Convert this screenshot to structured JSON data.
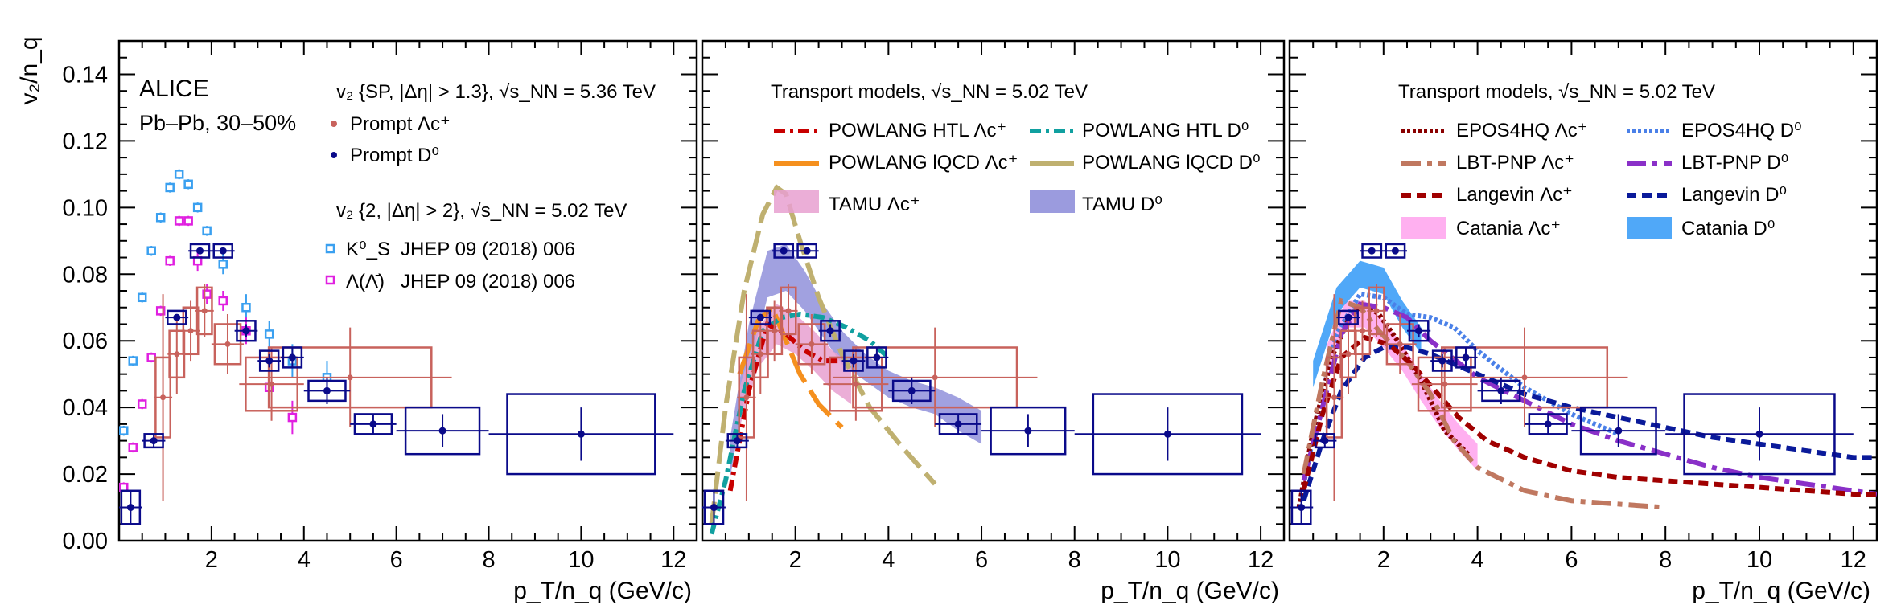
{
  "figure": {
    "ylabel": "v₂/n_q",
    "xlabel": "p_T/n_q (GeV/c)",
    "xticks": [
      2,
      4,
      6,
      8,
      10,
      12
    ],
    "yticks": [
      "0.00",
      "0.02",
      "0.04",
      "0.06",
      "0.08",
      "0.10",
      "0.12",
      "0.14"
    ],
    "colors": {
      "prompt_lc": "#c8625c",
      "prompt_d0": "#0a0a8a",
      "ks0": "#3aa0f0",
      "lambda": "#e020e0",
      "powlang_htl_lc": "#c80000",
      "powlang_htl_d0": "#10a0a0",
      "powlang_lqcd_lc": "#f5901e",
      "powlang_lqcd_d0": "#bfb070",
      "tamu_lc": "#e8a0d0",
      "tamu_d0": "#8a8ad8",
      "epos_lc": "#8a0000",
      "epos_d0": "#4a80e8",
      "lbt_lc": "#c07860",
      "lbt_d0": "#8a30c8",
      "langevin_lc": "#a00000",
      "langevin_d0": "#0a1a9a",
      "catania_lc": "#ffb0f0",
      "catania_d0": "#50a8f8"
    }
  },
  "panel1": {
    "experiment": "ALICE",
    "system": "Pb–Pb, 30–50%",
    "legend_a_header": "v₂ {SP, |Δη| > 1.3}, √s_NN = 5.36 TeV",
    "legend_a": [
      "Prompt Λc⁺",
      "Prompt D⁰"
    ],
    "legend_b_header": "v₂ {2, |Δη| > 2}, √s_NN = 5.02 TeV",
    "legend_b": [
      {
        "sym": "K⁰_S",
        "ref": "JHEP 09 (2018) 006"
      },
      {
        "sym": "Λ(Λ̄)",
        "ref": "JHEP 09 (2018) 006"
      }
    ]
  },
  "panel2": {
    "header": "Transport models, √s_NN = 5.02 TeV",
    "legend": [
      "POWLANG HTL Λc⁺",
      "POWLANG HTL D⁰",
      "POWLANG lQCD Λc⁺",
      "POWLANG lQCD D⁰",
      "TAMU Λc⁺",
      "TAMU D⁰"
    ]
  },
  "panel3": {
    "header": "Transport models, √s_NN = 5.02 TeV",
    "legend": [
      "EPOS4HQ Λc⁺",
      "EPOS4HQ D⁰",
      "LBT-PNP Λc⁺",
      "LBT-PNP D⁰",
      "Langevin Λc⁺",
      "Langevin D⁰",
      "Catania Λc⁺",
      "Catania D⁰"
    ]
  },
  "chart_data": {
    "type": "scatter",
    "xlabel": "p_T/n_q (GeV/c)",
    "ylabel": "v₂/n_q",
    "xlim": [
      0,
      12.5
    ],
    "ylim": [
      0,
      0.15
    ],
    "series": [
      {
        "name": "Prompt Λc⁺",
        "x": [
          0.95,
          1.25,
          1.55,
          1.85,
          2.35,
          3.3,
          5.0
        ],
        "y": [
          0.043,
          0.056,
          0.063,
          0.069,
          0.059,
          0.047,
          0.049
        ],
        "yerr": [
          0.031,
          0.012,
          0.009,
          0.008,
          0.009,
          0.011,
          0.015
        ],
        "xw": [
          0.2,
          0.2,
          0.2,
          0.2,
          0.35,
          0.7,
          2.2
        ],
        "syst": [
          0.012,
          0.007,
          0.007,
          0.007,
          0.006,
          0.008,
          0.009
        ]
      },
      {
        "name": "Prompt D⁰",
        "x": [
          0.25,
          0.75,
          1.25,
          1.75,
          2.25,
          2.75,
          3.25,
          3.75,
          4.5,
          5.5,
          7.0,
          10.0
        ],
        "y": [
          0.01,
          0.03,
          0.067,
          0.087,
          0.087,
          0.063,
          0.054,
          0.055,
          0.045,
          0.035,
          0.033,
          0.032
        ],
        "yerr": [
          0.005,
          0.002,
          0.001,
          0.001,
          0.001,
          0.002,
          0.002,
          0.003,
          0.004,
          0.003,
          0.005,
          0.008
        ],
        "xw": [
          0.25,
          0.25,
          0.25,
          0.25,
          0.25,
          0.25,
          0.25,
          0.25,
          0.5,
          0.5,
          1.0,
          2.0
        ],
        "syst": [
          0.005,
          0.002,
          0.002,
          0.002,
          0.002,
          0.003,
          0.003,
          0.003,
          0.003,
          0.003,
          0.007,
          0.012
        ]
      },
      {
        "name": "K⁰_S",
        "x": [
          0.1,
          0.3,
          0.5,
          0.7,
          0.9,
          1.1,
          1.3,
          1.5,
          1.7,
          1.9,
          2.25,
          2.75,
          3.25,
          3.75,
          4.5
        ],
        "y": [
          0.033,
          0.054,
          0.073,
          0.087,
          0.097,
          0.106,
          0.11,
          0.107,
          0.1,
          0.093,
          0.083,
          0.07,
          0.062,
          0.054,
          0.049
        ],
        "yerr": [
          0.0015,
          0.0015,
          0.0015,
          0.0015,
          0.0015,
          0.0015,
          0.0015,
          0.0015,
          0.0015,
          0.0015,
          0.003,
          0.004,
          0.004,
          0.005,
          0.005
        ]
      },
      {
        "name": "Λ(Λ̄)",
        "x": [
          0.1,
          0.3,
          0.5,
          0.7,
          0.9,
          1.1,
          1.3,
          1.5,
          1.7,
          1.9,
          2.25,
          2.75,
          3.25,
          3.75
        ],
        "y": [
          0.016,
          0.028,
          0.041,
          0.055,
          0.069,
          0.084,
          0.096,
          0.096,
          0.084,
          0.074,
          0.072,
          0.063,
          0.046,
          0.037
        ],
        "yerr": [
          0.0015,
          0.0015,
          0.0015,
          0.0015,
          0.0015,
          0.0015,
          0.0015,
          0.0015,
          0.003,
          0.003,
          0.003,
          0.004,
          0.004,
          0.005
        ]
      }
    ],
    "models": [
      {
        "name": "POWLANG HTL Λc⁺",
        "x": [
          0.6,
          1.0,
          1.4,
          1.8,
          2.2,
          2.6,
          3.0
        ],
        "y": [
          0.015,
          0.045,
          0.065,
          0.062,
          0.057,
          0.054,
          0.054
        ]
      },
      {
        "name": "POWLANG HTL D⁰",
        "x": [
          0.2,
          0.5,
          0.9,
          1.3,
          1.7,
          2.1,
          2.6,
          3.1,
          3.6,
          4.0
        ],
        "y": [
          0.002,
          0.018,
          0.045,
          0.063,
          0.067,
          0.068,
          0.067,
          0.064,
          0.06,
          0.055
        ]
      },
      {
        "name": "POWLANG lQCD Λc⁺",
        "x": [
          0.8,
          1.2,
          1.5,
          1.8,
          2.1,
          2.5,
          3.0
        ],
        "y": [
          0.05,
          0.066,
          0.07,
          0.06,
          0.05,
          0.041,
          0.034
        ]
      },
      {
        "name": "POWLANG lQCD D⁰",
        "x": [
          0.2,
          0.5,
          0.9,
          1.3,
          1.6,
          1.8,
          2.1,
          2.5,
          3.0,
          3.6,
          4.3,
          5.0
        ],
        "y": [
          0.005,
          0.04,
          0.075,
          0.098,
          0.106,
          0.104,
          0.09,
          0.073,
          0.056,
          0.04,
          0.028,
          0.017
        ]
      },
      {
        "name": "TAMU Λc⁺",
        "x": [
          0.8,
          1.2,
          1.6,
          2.0,
          2.4,
          2.8,
          3.2
        ],
        "y": [
          0.04,
          0.058,
          0.065,
          0.062,
          0.057,
          0.051,
          0.047
        ],
        "w": [
          0.006,
          0.006,
          0.006,
          0.006,
          0.006,
          0.006,
          0.006
        ]
      },
      {
        "name": "TAMU D⁰",
        "x": [
          0.6,
          1.0,
          1.4,
          1.8,
          2.2,
          2.6,
          3.0,
          3.5,
          4.0,
          4.5,
          5.0,
          5.5,
          6.0
        ],
        "y": [
          0.025,
          0.058,
          0.08,
          0.082,
          0.075,
          0.066,
          0.058,
          0.052,
          0.047,
          0.044,
          0.042,
          0.038,
          0.034
        ],
        "w": [
          0.006,
          0.007,
          0.007,
          0.007,
          0.006,
          0.005,
          0.005,
          0.004,
          0.004,
          0.004,
          0.004,
          0.005,
          0.005
        ]
      },
      {
        "name": "EPOS4HQ Λc⁺",
        "x": [
          0.2,
          0.5,
          0.9,
          1.3,
          1.6,
          1.9,
          2.3,
          2.8,
          3.3,
          3.8
        ],
        "y": [
          0.01,
          0.033,
          0.055,
          0.068,
          0.071,
          0.068,
          0.06,
          0.048,
          0.033,
          0.026
        ]
      },
      {
        "name": "EPOS4HQ D⁰",
        "x": [
          0.2,
          0.6,
          1.0,
          1.5,
          2.0,
          2.5,
          3.0,
          3.5,
          4.0,
          5.0,
          6.0,
          7.0
        ],
        "y": [
          0.01,
          0.038,
          0.062,
          0.074,
          0.073,
          0.068,
          0.067,
          0.064,
          0.057,
          0.046,
          0.038,
          0.032
        ]
      },
      {
        "name": "LBT-PNP Λc⁺",
        "x": [
          0.3,
          0.7,
          1.1,
          1.5,
          1.9,
          2.5,
          3.0,
          3.5,
          4.0,
          5.0,
          6.0,
          7.0,
          8.0
        ],
        "y": [
          0.02,
          0.048,
          0.072,
          0.07,
          0.063,
          0.054,
          0.044,
          0.03,
          0.022,
          0.015,
          0.012,
          0.011,
          0.01
        ]
      },
      {
        "name": "LBT-PNP D⁰",
        "x": [
          0.3,
          0.7,
          1.1,
          1.5,
          2.0,
          2.5,
          3.0,
          4.0,
          5.0,
          6.0,
          7.0,
          8.0,
          9.0,
          10.0,
          11.0,
          12.0,
          12.5
        ],
        "y": [
          0.018,
          0.04,
          0.062,
          0.071,
          0.07,
          0.067,
          0.06,
          0.049,
          0.042,
          0.035,
          0.03,
          0.026,
          0.022,
          0.019,
          0.017,
          0.015,
          0.014
        ]
      },
      {
        "name": "Langevin Λc⁺",
        "x": [
          0.3,
          0.7,
          1.1,
          1.6,
          2.1,
          2.6,
          3.1,
          3.6,
          4.2,
          5.0,
          6.0,
          7.0,
          8.0,
          9.0,
          10.0,
          11.0,
          12.0,
          12.5
        ],
        "y": [
          0.015,
          0.038,
          0.055,
          0.061,
          0.059,
          0.053,
          0.045,
          0.037,
          0.03,
          0.025,
          0.021,
          0.019,
          0.018,
          0.017,
          0.016,
          0.015,
          0.014,
          0.014
        ]
      },
      {
        "name": "Langevin D⁰",
        "x": [
          0.3,
          0.7,
          1.1,
          1.6,
          2.0,
          2.5,
          3.0,
          3.5,
          4.0,
          5.0,
          6.0,
          7.0,
          8.0,
          9.0,
          10.0,
          11.0,
          12.0,
          12.5
        ],
        "y": [
          0.012,
          0.03,
          0.045,
          0.055,
          0.058,
          0.058,
          0.056,
          0.053,
          0.05,
          0.044,
          0.04,
          0.037,
          0.034,
          0.031,
          0.029,
          0.027,
          0.025,
          0.025
        ]
      },
      {
        "name": "Catania Λc⁺",
        "x": [
          0.8,
          1.2,
          1.6,
          2.0,
          2.4,
          2.8,
          3.2,
          3.6,
          4.0
        ],
        "y": [
          0.055,
          0.068,
          0.068,
          0.062,
          0.055,
          0.046,
          0.038,
          0.031,
          0.025
        ],
        "w": [
          0.004,
          0.004,
          0.004,
          0.004,
          0.004,
          0.004,
          0.004,
          0.004,
          0.004
        ]
      },
      {
        "name": "Catania D⁰",
        "x": [
          0.5,
          1.0,
          1.5,
          2.0,
          2.4,
          2.8
        ],
        "y": [
          0.05,
          0.072,
          0.08,
          0.078,
          0.068,
          0.06
        ],
        "w": [
          0.004,
          0.004,
          0.004,
          0.004,
          0.004,
          0.004
        ]
      }
    ]
  }
}
